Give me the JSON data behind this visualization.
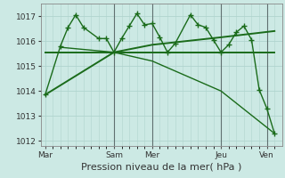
{
  "background_color": "#cce9e4",
  "grid_color": "#b0d4ce",
  "line_color": "#1a6b1a",
  "ylim": [
    1011.8,
    1017.5
  ],
  "yticks": [
    1012,
    1013,
    1014,
    1015,
    1016,
    1017
  ],
  "xlabel": "Pression niveau de la mer( hPa )",
  "xtick_labels": [
    "Mar",
    "Sam",
    "Mer",
    "Jeu",
    "Ven"
  ],
  "xtick_positions": [
    0,
    9,
    14,
    23,
    29
  ],
  "xlim": [
    -0.5,
    31
  ],
  "vline_positions": [
    9,
    14,
    23,
    29
  ],
  "vline_color": "#607070",
  "tick_fontsize": 6.5,
  "xlabel_fontsize": 8,
  "series": [
    {
      "x": [
        0,
        2,
        3,
        4,
        5,
        7,
        8,
        9,
        10,
        11,
        12,
        13,
        14,
        15,
        16,
        17,
        19,
        20,
        21,
        22,
        23,
        24,
        25,
        26,
        27,
        28,
        29,
        30
      ],
      "y": [
        1013.85,
        1015.8,
        1016.55,
        1017.05,
        1016.55,
        1016.1,
        1016.1,
        1015.55,
        1016.1,
        1016.6,
        1017.1,
        1016.65,
        1016.7,
        1016.15,
        1015.55,
        1015.9,
        1017.05,
        1016.65,
        1016.55,
        1016.05,
        1015.55,
        1015.85,
        1016.35,
        1016.6,
        1016.05,
        1014.05,
        1013.3,
        1012.3
      ],
      "marker": "+",
      "markersize": 4,
      "linewidth": 1.0,
      "zorder": 4
    },
    {
      "x": [
        0,
        9,
        14,
        23,
        30
      ],
      "y": [
        1015.55,
        1015.55,
        1015.55,
        1015.55,
        1015.55
      ],
      "marker": null,
      "markersize": 0,
      "linewidth": 1.4,
      "zorder": 3
    },
    {
      "x": [
        0,
        9,
        14,
        23,
        30
      ],
      "y": [
        1013.85,
        1015.55,
        1015.85,
        1016.15,
        1016.4
      ],
      "marker": null,
      "markersize": 0,
      "linewidth": 1.4,
      "zorder": 3
    },
    {
      "x": [
        2,
        9,
        14,
        23,
        30
      ],
      "y": [
        1015.75,
        1015.55,
        1015.2,
        1014.0,
        1012.3
      ],
      "marker": null,
      "markersize": 0,
      "linewidth": 1.0,
      "zorder": 3
    }
  ]
}
